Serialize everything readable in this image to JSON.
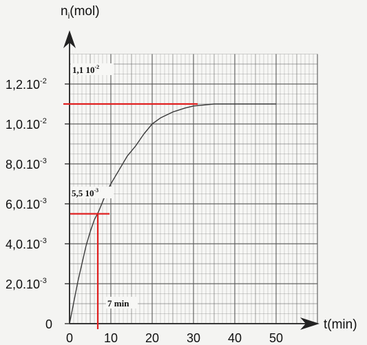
{
  "chart_data": {
    "type": "line",
    "title": "",
    "xlabel": "t(min)",
    "ylabel": "n",
    "ylabel_sub": "i",
    "ylabel_unit": "(mol)",
    "xlim": [
      0,
      60
    ],
    "ylim": [
      0,
      0.0135
    ],
    "grid": true,
    "x_ticks": [
      {
        "value": 0,
        "label": "0"
      },
      {
        "value": 10,
        "label": "10"
      },
      {
        "value": 20,
        "label": "20"
      },
      {
        "value": 30,
        "label": "30"
      },
      {
        "value": 40,
        "label": "40"
      },
      {
        "value": 50,
        "label": "50"
      }
    ],
    "y_ticks": [
      {
        "value": 0,
        "mantissa": "0",
        "exp": ""
      },
      {
        "value": 0.002,
        "mantissa": "2,0.10",
        "exp": "-3"
      },
      {
        "value": 0.004,
        "mantissa": "4,0.10",
        "exp": "-3"
      },
      {
        "value": 0.006,
        "mantissa": "6,0.10",
        "exp": "-3"
      },
      {
        "value": 0.008,
        "mantissa": "8,0.10",
        "exp": "-3"
      },
      {
        "value": 0.01,
        "mantissa": "1,0.10",
        "exp": "-2"
      },
      {
        "value": 0.012,
        "mantissa": "1,2.10",
        "exp": "-2"
      }
    ],
    "series": [
      {
        "x": [
          0,
          1,
          2,
          3,
          4,
          5,
          6,
          7,
          8,
          9,
          10,
          12,
          14,
          16,
          18,
          20,
          22,
          25,
          28,
          30,
          35,
          40,
          45,
          50
        ],
        "y": [
          0,
          0.00105,
          0.0021,
          0.003,
          0.0039,
          0.0046,
          0.0052,
          0.0056,
          0.0061,
          0.0066,
          0.007,
          0.0077,
          0.0084,
          0.0089,
          0.0095,
          0.01,
          0.0103,
          0.0106,
          0.0108,
          0.0109,
          0.011,
          0.011,
          0.011,
          0.011
        ]
      }
    ],
    "annotations": {
      "hline_max": {
        "y": 0.011,
        "x_end": 31,
        "label_main": "1,1 10",
        "label_exp": "-2"
      },
      "hline_half": {
        "y": 0.0055,
        "x_end": 9,
        "label_main": "5,5 10",
        "label_exp": "-3"
      },
      "vline_half": {
        "x": 7,
        "label": "7 min"
      }
    },
    "colors": {
      "curve": "#3a3a3a",
      "grid": "#555555",
      "annotation": "#e02020",
      "axis": "#222222"
    }
  }
}
